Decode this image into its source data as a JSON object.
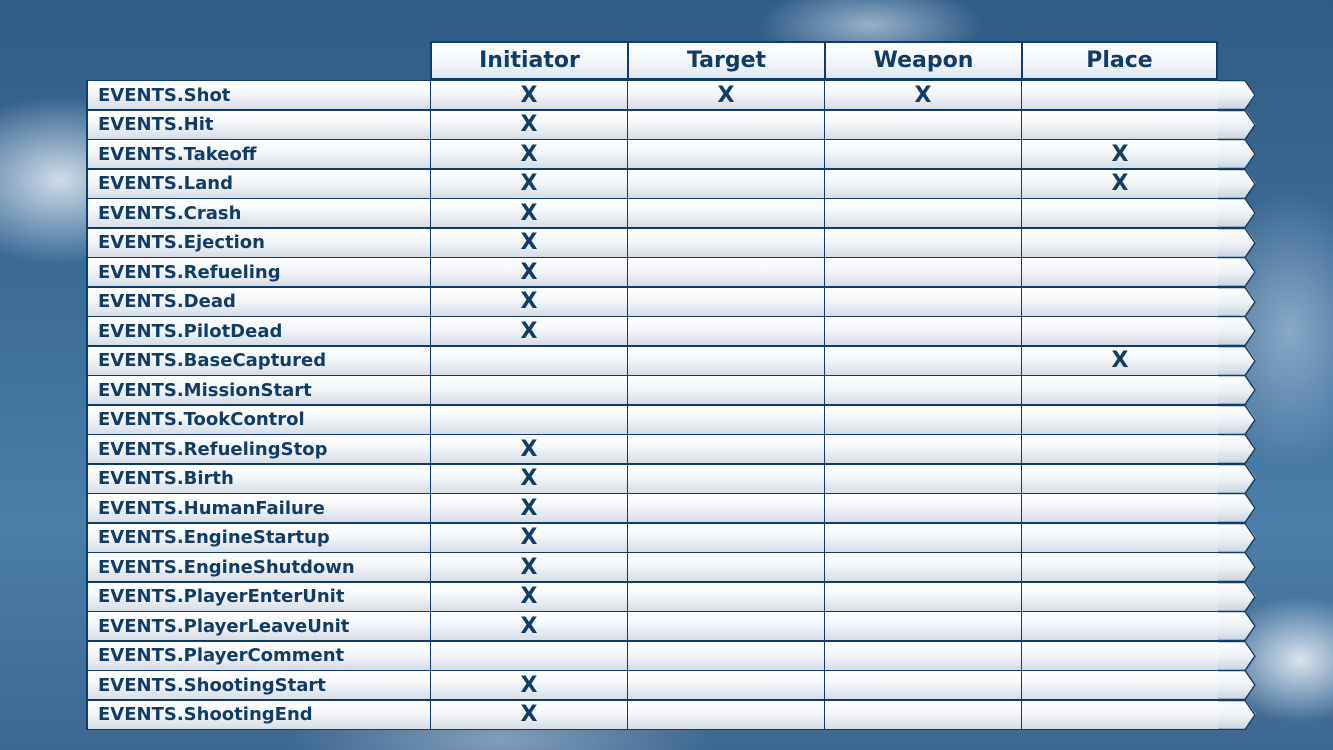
{
  "columns": [
    "Initiator",
    "Target",
    "Weapon",
    "Place"
  ],
  "mark": "X",
  "rows": [
    {
      "event": "EVENTS.Shot",
      "marks": [
        "X",
        "X",
        "X",
        ""
      ]
    },
    {
      "event": "EVENTS.Hit",
      "marks": [
        "X",
        "",
        "",
        ""
      ]
    },
    {
      "event": "EVENTS.Takeoff",
      "marks": [
        "X",
        "",
        "",
        "X"
      ]
    },
    {
      "event": "EVENTS.Land",
      "marks": [
        "X",
        "",
        "",
        "X"
      ]
    },
    {
      "event": "EVENTS.Crash",
      "marks": [
        "X",
        "",
        "",
        ""
      ]
    },
    {
      "event": "EVENTS.Ejection",
      "marks": [
        "X",
        "",
        "",
        ""
      ]
    },
    {
      "event": "EVENTS.Refueling",
      "marks": [
        "X",
        "",
        "",
        ""
      ]
    },
    {
      "event": "EVENTS.Dead",
      "marks": [
        "X",
        "",
        "",
        ""
      ]
    },
    {
      "event": "EVENTS.PilotDead",
      "marks": [
        "X",
        "",
        "",
        ""
      ]
    },
    {
      "event": "EVENTS.BaseCaptured",
      "marks": [
        "",
        "",
        "",
        "X"
      ]
    },
    {
      "event": "EVENTS.MissionStart",
      "marks": [
        "",
        "",
        "",
        ""
      ]
    },
    {
      "event": "EVENTS.TookControl",
      "marks": [
        "",
        "",
        "",
        ""
      ]
    },
    {
      "event": "EVENTS.RefuelingStop",
      "marks": [
        "X",
        "",
        "",
        ""
      ]
    },
    {
      "event": "EVENTS.Birth",
      "marks": [
        "X",
        "",
        "",
        ""
      ]
    },
    {
      "event": "EVENTS.HumanFailure",
      "marks": [
        "X",
        "",
        "",
        ""
      ]
    },
    {
      "event": "EVENTS.EngineStartup",
      "marks": [
        "X",
        "",
        "",
        ""
      ]
    },
    {
      "event": "EVENTS.EngineShutdown",
      "marks": [
        "X",
        "",
        "",
        ""
      ]
    },
    {
      "event": "EVENTS.PlayerEnterUnit",
      "marks": [
        "X",
        "",
        "",
        ""
      ]
    },
    {
      "event": "EVENTS.PlayerLeaveUnit",
      "marks": [
        "X",
        "",
        "",
        ""
      ]
    },
    {
      "event": "EVENTS.PlayerComment",
      "marks": [
        "",
        "",
        "",
        ""
      ]
    },
    {
      "event": "EVENTS.ShootingStart",
      "marks": [
        "X",
        "",
        "",
        ""
      ]
    },
    {
      "event": "EVENTS.ShootingEnd",
      "marks": [
        "X",
        "",
        "",
        ""
      ]
    }
  ],
  "colors": {
    "border": "#0f3d68",
    "text": "#0f3d68",
    "sky": "#3c6d99"
  }
}
